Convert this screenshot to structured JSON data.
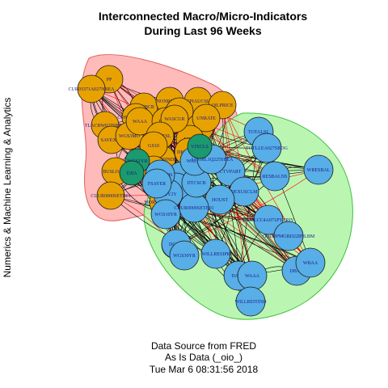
{
  "title": [
    "Interconnected Macro/Micro-Indicators",
    "During Last 96 Weeks"
  ],
  "side_label": "Numerics & Machine Learning & Analytics",
  "footer": [
    "Data Source from FRED",
    "As Is Data (_oio_)",
    "Tue Mar  6 08:31:56 2018"
  ],
  "colors": {
    "group_red_fill": "#ffb3b3",
    "group_red_stroke": "#e06060",
    "group_green_fill": "#b3f5a8",
    "group_green_stroke": "#3fbf3f",
    "node_orange": "#e8a200",
    "node_blue": "#58aee6",
    "node_teal": "#1a9a6e",
    "edge": "#000000",
    "edge_red": "#ff0000"
  },
  "nodes": [
    {
      "label": "PP",
      "group": "orange"
    },
    {
      "label": "CUR03371A027NBEA",
      "group": "orange"
    },
    {
      "label": "TLACBW027SBOG",
      "group": "orange"
    },
    {
      "label": "SAVEXNS",
      "group": "orange"
    },
    {
      "label": "BUSLOANS",
      "group": "orange"
    },
    {
      "label": "CUUR0000SETB01",
      "group": "orange"
    },
    {
      "label": "WCCBCR",
      "group": "orange"
    },
    {
      "label": "CONSUMERNSA",
      "group": "orange"
    },
    {
      "label": "NONREVNS",
      "group": "orange"
    },
    {
      "label": "WGS3MO",
      "group": "orange"
    },
    {
      "label": "WAAA",
      "group": "orange"
    },
    {
      "label": "DAAA",
      "group": "orange"
    },
    {
      "label": "WILL5000INDFC",
      "group": "orange"
    },
    {
      "label": "CPIAUCSL",
      "group": "orange"
    },
    {
      "label": "OILPRICE",
      "group": "orange"
    },
    {
      "label": "ILOTFL",
      "group": "orange"
    },
    {
      "label": "INDPRO",
      "group": "orange"
    },
    {
      "label": "UNRATE",
      "group": "orange"
    },
    {
      "label": "M2SL",
      "group": "orange"
    },
    {
      "label": "WASCUR",
      "group": "orange"
    },
    {
      "label": "CPILFESL",
      "group": "orange"
    },
    {
      "label": "GS10",
      "group": "orange"
    },
    {
      "label": "T10YFF",
      "group": "orange"
    },
    {
      "label": "MORTGAGE30US",
      "group": "orange"
    },
    {
      "label": "DEXUSEU",
      "group": "orange"
    },
    {
      "label": "WSWC",
      "group": "orange"
    },
    {
      "label": "DGS5",
      "group": "orange"
    },
    {
      "label": "TOTALSL",
      "group": "blue"
    },
    {
      "label": "TOTLLEA027SBOG",
      "group": "blue"
    },
    {
      "label": "RESBALNS",
      "group": "blue"
    },
    {
      "label": "WRESBAL",
      "group": "blue"
    },
    {
      "label": "CTVPART",
      "group": "blue"
    },
    {
      "label": "DEXUSCLM",
      "group": "blue"
    },
    {
      "label": "HOUST",
      "group": "blue"
    },
    {
      "label": "WGS3YR",
      "group": "blue"
    },
    {
      "label": "WGS7YR",
      "group": "blue"
    },
    {
      "label": "T10Y2Y",
      "group": "blue"
    },
    {
      "label": "WGS10YR",
      "group": "blue"
    },
    {
      "label": "CUUR0000SETB01",
      "group": "blue"
    },
    {
      "label": "DGS30",
      "group": "blue"
    },
    {
      "label": "WGS30YR",
      "group": "blue"
    },
    {
      "label": "WILLRESIPR",
      "group": "blue"
    },
    {
      "label": "DAAA",
      "group": "blue"
    },
    {
      "label": "WAAA",
      "group": "blue"
    },
    {
      "label": "WILLREITIND",
      "group": "blue"
    },
    {
      "label": "DBAA",
      "group": "blue"
    },
    {
      "label": "WBAA",
      "group": "blue"
    },
    {
      "label": "BAMLCC4A071PYTRIV",
      "group": "blue"
    },
    {
      "label": "GOLDPMGBD228NLBM",
      "group": "blue"
    },
    {
      "label": "DTCSCB",
      "group": "blue"
    },
    {
      "label": "WALCL",
      "group": "blue"
    },
    {
      "label": "A191RL1Q225SBEA",
      "group": "blue"
    },
    {
      "label": "FEDFUNDS",
      "group": "blue"
    },
    {
      "label": "FSAVER",
      "group": "blue"
    },
    {
      "label": "WGS1YR",
      "group": "teal"
    },
    {
      "label": "DJIA",
      "group": "teal"
    },
    {
      "label": "VIXCLS",
      "group": "teal"
    }
  ]
}
